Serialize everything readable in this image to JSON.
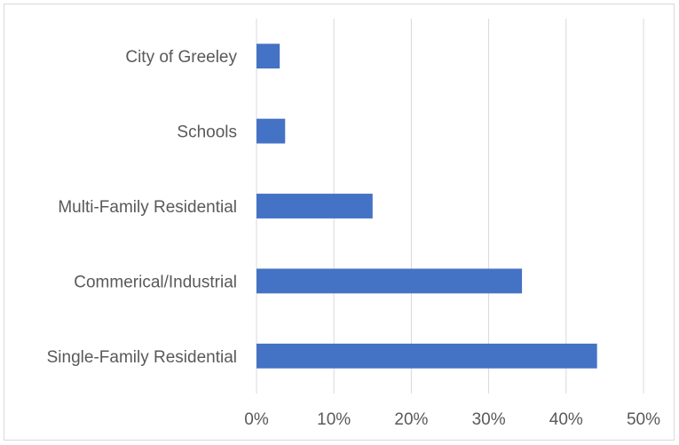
{
  "chart_data": {
    "type": "bar",
    "orientation": "horizontal",
    "categories": [
      "Single-Family Residential",
      "Commerical/Industrial",
      "Multi-Family Residential",
      "Schools",
      "City of Greeley"
    ],
    "values": [
      0.44,
      0.343,
      0.15,
      0.037,
      0.03
    ],
    "xlim": [
      0,
      0.5
    ],
    "x_ticks": [
      0,
      0.1,
      0.2,
      0.3,
      0.4,
      0.5
    ],
    "x_tick_labels": [
      "0%",
      "10%",
      "20%",
      "30%",
      "40%",
      "50%"
    ],
    "grid": "vertical",
    "legend": "none",
    "title": "",
    "xlabel": "",
    "ylabel": "",
    "bar_color": "#4472C4",
    "grid_color": "#d9d9d9"
  }
}
